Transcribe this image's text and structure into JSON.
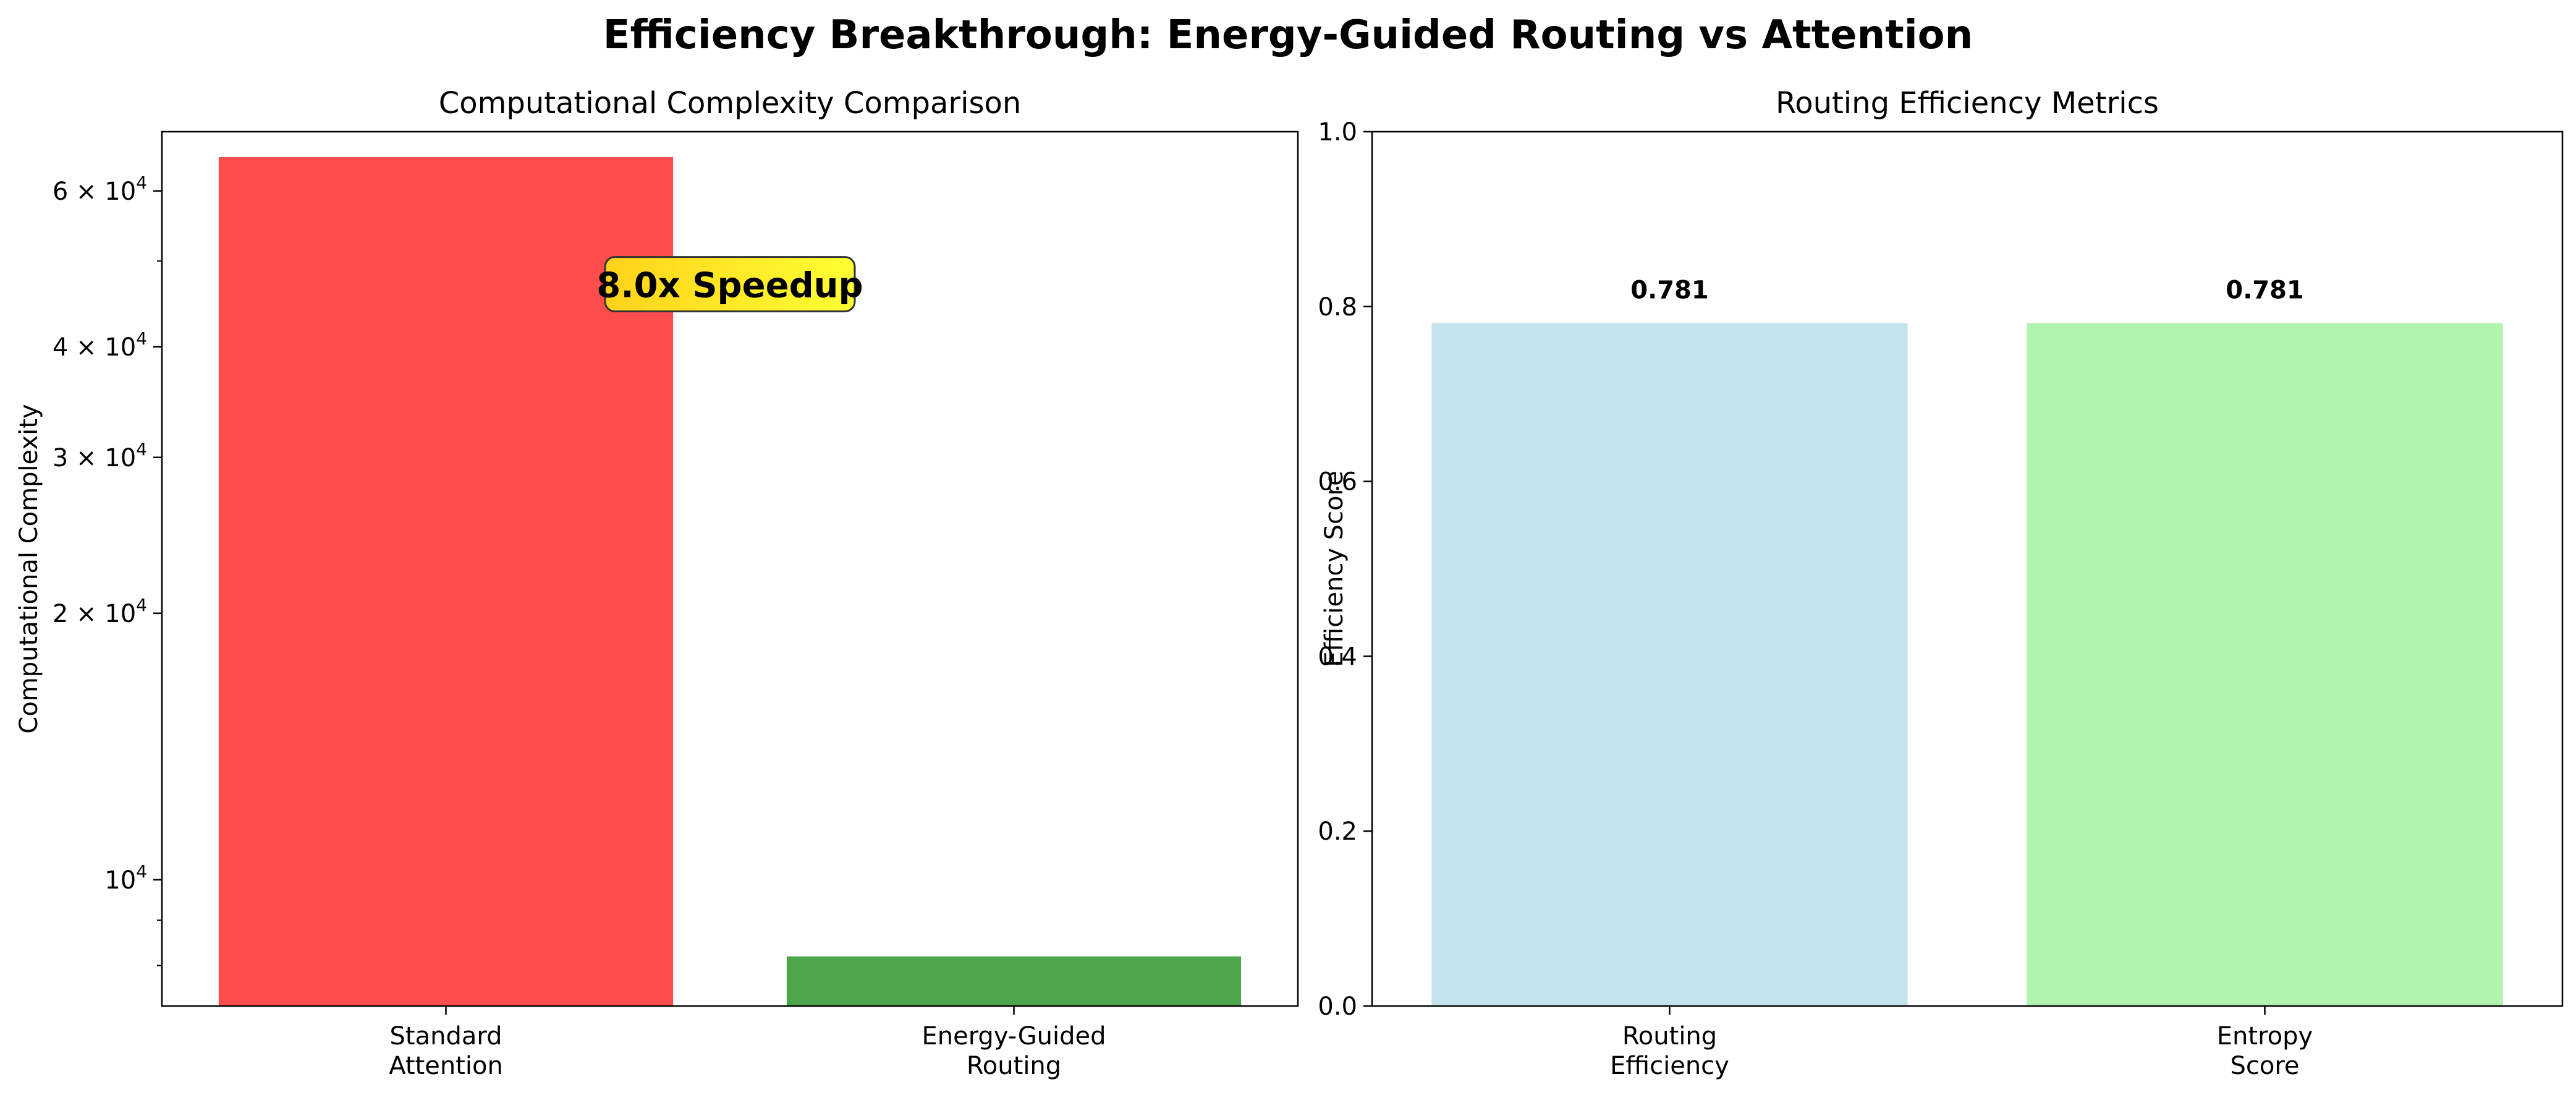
{
  "figure": {
    "suptitle": "Efficiency Breakthrough: Energy-Guided Routing vs Attention"
  },
  "chart_data": [
    {
      "type": "bar",
      "title": "Computational Complexity Comparison",
      "xlabel": "",
      "ylabel": "Computational Complexity",
      "yscale": "log",
      "categories": [
        [
          "Standard",
          "Attention"
        ],
        [
          "Energy-Guided",
          "Routing"
        ]
      ],
      "values": [
        65536,
        8192
      ],
      "colors": [
        "#ff4d4d",
        "#4ca64c"
      ],
      "ylim": [
        7200,
        70000
      ],
      "yticks": [
        {
          "value": 10000,
          "mantissa": "",
          "exp": "4"
        },
        {
          "value": 20000,
          "mantissa": "2",
          "exp": "4"
        },
        {
          "value": 30000,
          "mantissa": "3",
          "exp": "4"
        },
        {
          "value": 40000,
          "mantissa": "4",
          "exp": "4"
        },
        {
          "value": 60000,
          "mantissa": "6",
          "exp": "4"
        }
      ],
      "minor_yticks": [
        8000,
        9000,
        50000
      ],
      "annotation": {
        "text": "8.0x Speedup",
        "at": [
          0.5,
          47000
        ]
      },
      "grid": false,
      "legend": "none"
    },
    {
      "type": "bar",
      "title": "Routing Efficiency Metrics",
      "xlabel": "",
      "ylabel": "Efficiency Score",
      "categories": [
        [
          "Routing",
          "Efficiency"
        ],
        [
          "Entropy",
          "Score"
        ]
      ],
      "values": [
        0.781,
        0.781
      ],
      "value_labels": [
        "0.781",
        "0.781"
      ],
      "colors": [
        "#c5e3ed",
        "#b0f4ae"
      ],
      "ylim": [
        0,
        1.0
      ],
      "yticks": [
        "0.0",
        "0.2",
        "0.4",
        "0.6",
        "0.8",
        "1.0"
      ],
      "grid": false,
      "legend": "none"
    }
  ]
}
